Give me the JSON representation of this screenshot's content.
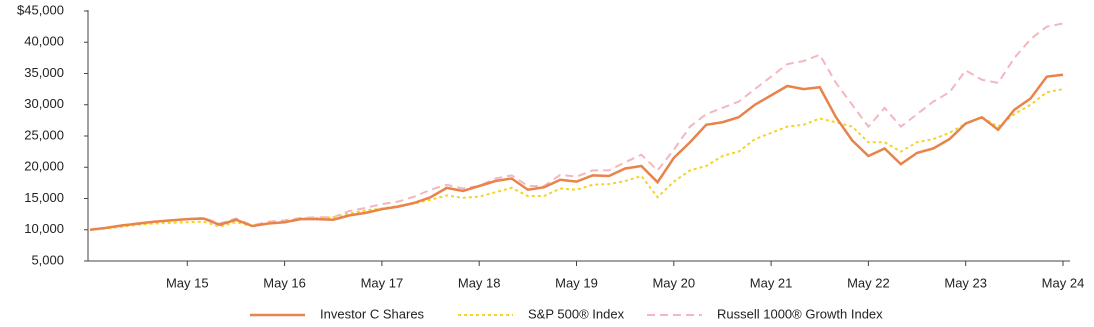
{
  "chart_data": {
    "type": "line",
    "categories": [
      null,
      null,
      null,
      null,
      null,
      null,
      "May 15",
      null,
      null,
      null,
      null,
      null,
      "May 16",
      null,
      null,
      null,
      null,
      null,
      "May 17",
      null,
      null,
      null,
      null,
      null,
      "May 18",
      null,
      null,
      null,
      null,
      null,
      "May 19",
      null,
      null,
      null,
      null,
      null,
      "May 20",
      null,
      null,
      null,
      null,
      null,
      "May 21",
      null,
      null,
      null,
      null,
      null,
      "May 22",
      null,
      null,
      null,
      null,
      null,
      "May 23",
      null,
      null,
      null,
      null,
      null,
      "May 24"
    ],
    "series": [
      {
        "name": "Investor C Shares",
        "color": "#e8834a",
        "style": "solid",
        "values": [
          10000,
          10300,
          10700,
          11000,
          11300,
          11500,
          11700,
          11800,
          10800,
          11600,
          10600,
          11000,
          11200,
          11700,
          11700,
          11600,
          12300,
          12700,
          13300,
          13700,
          14300,
          15200,
          16700,
          16200,
          17000,
          17800,
          18200,
          16400,
          16800,
          18000,
          17700,
          18700,
          18600,
          19800,
          20200,
          17600,
          21500,
          24000,
          26800,
          27200,
          28000,
          30000,
          31500,
          33000,
          32500,
          32800,
          28000,
          24300,
          21800,
          23000,
          20500,
          22300,
          23000,
          24500,
          27000,
          28000,
          26000,
          29200,
          31000,
          34500,
          34800
        ]
      },
      {
        "name": "S&P 500® Index",
        "color": "#f5d327",
        "style": "dotted",
        "values": [
          10000,
          10200,
          10500,
          10800,
          11000,
          11100,
          11200,
          11300,
          10500,
          11200,
          10600,
          11000,
          11300,
          11800,
          11900,
          12000,
          12600,
          13100,
          13400,
          13800,
          14200,
          14800,
          15500,
          15100,
          15300,
          16000,
          16700,
          15400,
          15400,
          16600,
          16400,
          17200,
          17300,
          17800,
          18600,
          15200,
          17700,
          19500,
          20200,
          21800,
          22500,
          24500,
          25500,
          26500,
          26800,
          27800,
          27200,
          26500,
          24000,
          24000,
          22500,
          24000,
          24500,
          25500,
          27000,
          28000,
          26500,
          28500,
          30000,
          32000,
          32500
        ]
      },
      {
        "name": "Russell 1000® Growth Index",
        "color": "#f4b6bf",
        "style": "dashed",
        "values": [
          10000,
          10300,
          10700,
          11000,
          11300,
          11500,
          11700,
          11900,
          11000,
          11800,
          10700,
          11300,
          11500,
          11900,
          12000,
          12000,
          13000,
          13500,
          14100,
          14500,
          15300,
          16400,
          17200,
          16600,
          17000,
          18200,
          18700,
          17000,
          17000,
          18800,
          18500,
          19500,
          19500,
          20800,
          22000,
          19500,
          22800,
          26500,
          28500,
          29500,
          30500,
          32500,
          34500,
          36500,
          37000,
          38000,
          33500,
          30000,
          26500,
          29500,
          26500,
          28500,
          30500,
          32000,
          35500,
          34000,
          33500,
          37500,
          40500,
          42500,
          43000
        ]
      }
    ],
    "ylim": [
      5000,
      45000
    ],
    "yticks": [
      {
        "value": 5000,
        "label": "5,000"
      },
      {
        "value": 10000,
        "label": "10,000"
      },
      {
        "value": 15000,
        "label": "15,000"
      },
      {
        "value": 20000,
        "label": "20,000"
      },
      {
        "value": 25000,
        "label": "25,000"
      },
      {
        "value": 30000,
        "label": "30,000"
      },
      {
        "value": 35000,
        "label": "35,000"
      },
      {
        "value": 40000,
        "label": "40,000"
      },
      {
        "value": 45000,
        "label": "$45,000"
      }
    ],
    "legend": "bottom"
  }
}
